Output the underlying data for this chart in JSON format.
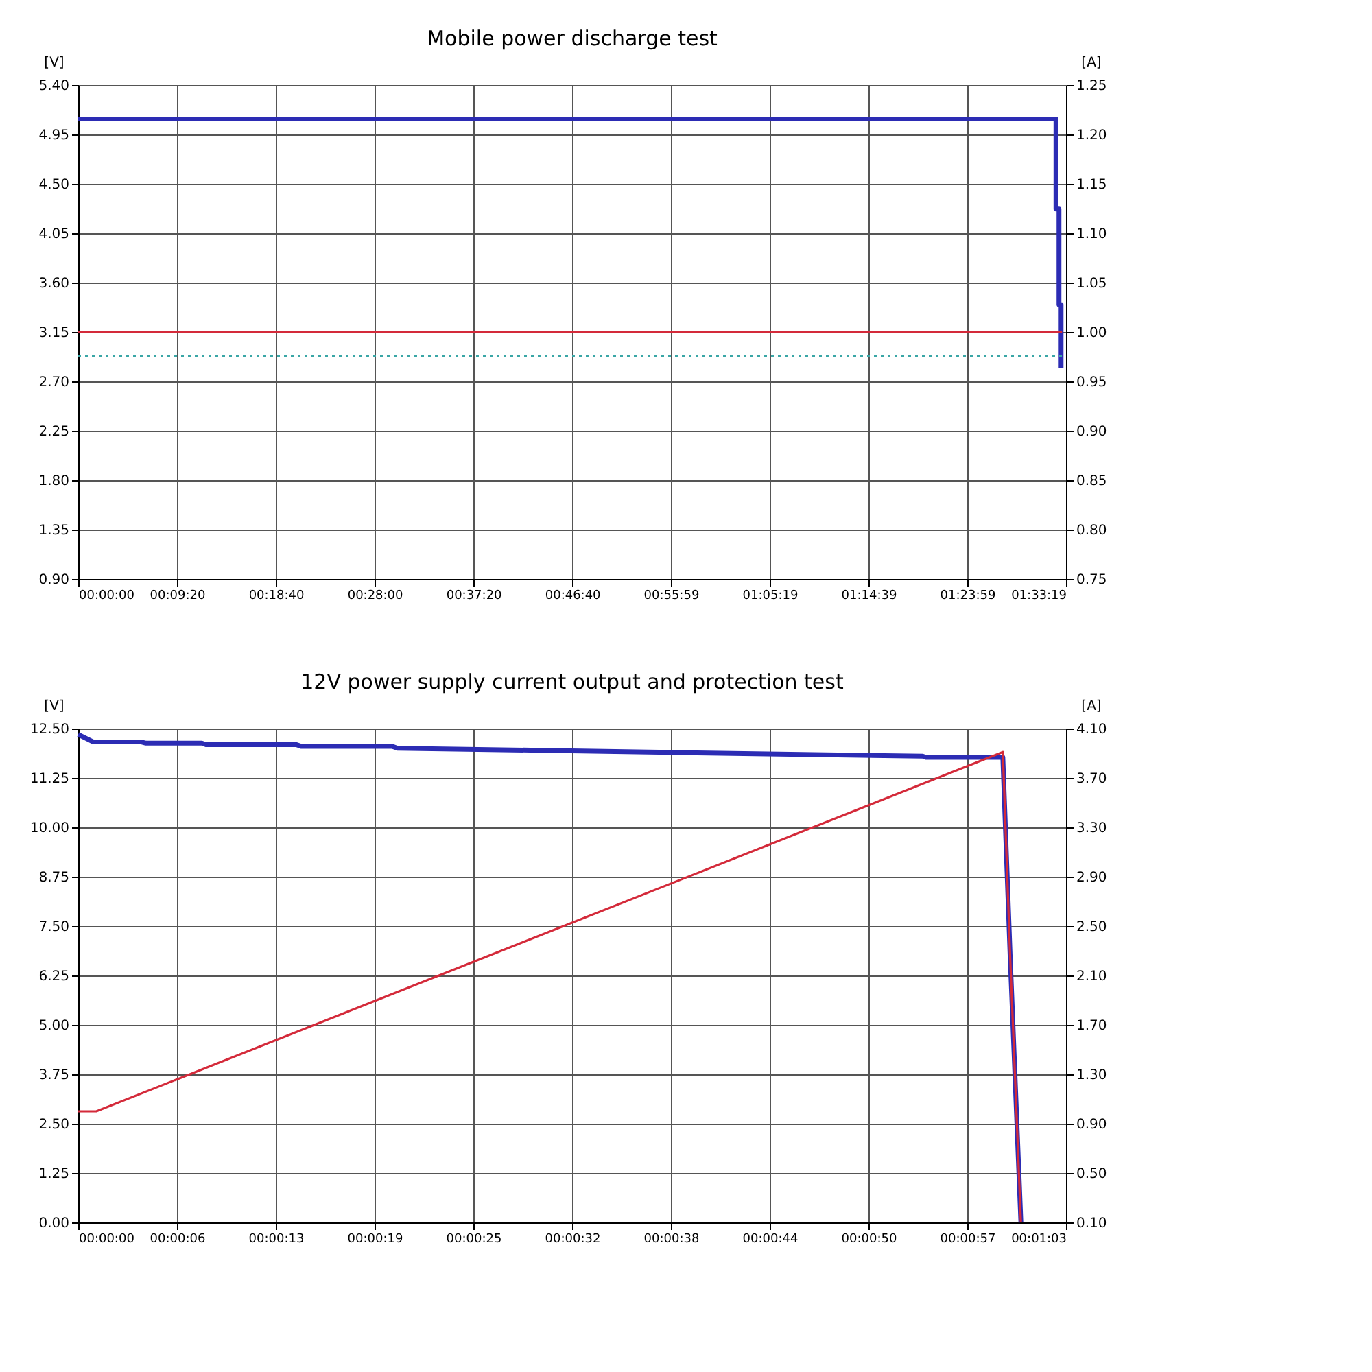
{
  "chart_data": [
    {
      "type": "line",
      "title": "Mobile power discharge test",
      "ylabel": "[V]",
      "y2label": "[A]",
      "grid": true,
      "line_style": "solid",
      "xlim": [
        0,
        1.55528
      ],
      "xticks": [
        {
          "value": 0,
          "label": "00:00:00"
        },
        {
          "value": 0.15556,
          "label": "00:09:20"
        },
        {
          "value": 0.31111,
          "label": "00:18:40"
        },
        {
          "value": 0.46667,
          "label": "00:28:00"
        },
        {
          "value": 0.62222,
          "label": "00:37:20"
        },
        {
          "value": 0.77778,
          "label": "00:46:40"
        },
        {
          "value": 0.93306,
          "label": "00:55:59"
        },
        {
          "value": 1.08861,
          "label": "01:05:19"
        },
        {
          "value": 1.24417,
          "label": "01:14:39"
        },
        {
          "value": 1.39972,
          "label": "01:23:59"
        },
        {
          "value": 1.55528,
          "label": "01:33:19"
        }
      ],
      "ylim": [
        0.9,
        5.4
      ],
      "yticks": [
        {
          "value": 0.9,
          "label": "0.90"
        },
        {
          "value": 1.35,
          "label": "1.35"
        },
        {
          "value": 1.8,
          "label": "1.80"
        },
        {
          "value": 2.25,
          "label": "2.25"
        },
        {
          "value": 2.7,
          "label": "2.70"
        },
        {
          "value": 3.15,
          "label": "3.15"
        },
        {
          "value": 3.6,
          "label": "3.60"
        },
        {
          "value": 4.05,
          "label": "4.05"
        },
        {
          "value": 4.5,
          "label": "4.50"
        },
        {
          "value": 4.95,
          "label": "4.95"
        },
        {
          "value": 5.4,
          "label": "5.40"
        }
      ],
      "y2lim": [
        0.75,
        1.25
      ],
      "y2ticks": [
        {
          "value": 0.75,
          "label": "0.75"
        },
        {
          "value": 0.8,
          "label": "0.80"
        },
        {
          "value": 0.85,
          "label": "0.85"
        },
        {
          "value": 0.9,
          "label": "0.90"
        },
        {
          "value": 0.95,
          "label": "0.95"
        },
        {
          "value": 1.0,
          "label": "1.00"
        },
        {
          "value": 1.05,
          "label": "1.05"
        },
        {
          "value": 1.1,
          "label": "1.10"
        },
        {
          "value": 1.15,
          "label": "1.15"
        },
        {
          "value": 1.2,
          "label": "1.20"
        },
        {
          "value": 1.25,
          "label": "1.25"
        }
      ],
      "ref_lines": [
        {
          "axis": "y",
          "value": 2.93,
          "color": "#3aa6a6",
          "line_style": "dotted"
        }
      ],
      "series": [
        {
          "color": "#2c2cb4",
          "x": [
            0,
            1.5394,
            1.5394,
            1.5442,
            1.5442,
            1.5475,
            1.5475
          ],
          "values": [
            5.09,
            5.09,
            4.27,
            4.27,
            3.4,
            3.4,
            2.82
          ]
        },
        {
          "color": "#d42a3a",
          "axis": "y2",
          "x": [
            0,
            1.549
          ],
          "values": [
            1.0,
            1.0
          ]
        }
      ]
    },
    {
      "type": "line",
      "title": "12V power supply current output and protection test",
      "ylabel": "[V]",
      "y2label": "[A]",
      "grid": true,
      "line_style": "solid",
      "xlim": [
        0,
        0.0175
      ],
      "xticks": [
        {
          "value": 0,
          "label": "00:00:00"
        },
        {
          "value": 0.00175,
          "label": "00:00:06"
        },
        {
          "value": 0.0035,
          "label": "00:00:13"
        },
        {
          "value": 0.00525,
          "label": "00:00:19"
        },
        {
          "value": 0.007,
          "label": "00:00:25"
        },
        {
          "value": 0.00875,
          "label": "00:00:32"
        },
        {
          "value": 0.0105,
          "label": "00:00:38"
        },
        {
          "value": 0.01225,
          "label": "00:00:44"
        },
        {
          "value": 0.014,
          "label": "00:00:50"
        },
        {
          "value": 0.01575,
          "label": "00:00:57"
        },
        {
          "value": 0.0175,
          "label": "00:01:03"
        }
      ],
      "ylim": [
        0,
        12.5
      ],
      "yticks": [
        {
          "value": 0,
          "label": "0.00"
        },
        {
          "value": 1.25,
          "label": "1.25"
        },
        {
          "value": 2.5,
          "label": "2.50"
        },
        {
          "value": 3.75,
          "label": "3.75"
        },
        {
          "value": 5,
          "label": "5.00"
        },
        {
          "value": 6.25,
          "label": "6.25"
        },
        {
          "value": 7.5,
          "label": "7.50"
        },
        {
          "value": 8.75,
          "label": "8.75"
        },
        {
          "value": 10,
          "label": "10.00"
        },
        {
          "value": 11.25,
          "label": "11.25"
        },
        {
          "value": 12.5,
          "label": "12.50"
        }
      ],
      "y2lim": [
        0.1,
        4.1
      ],
      "y2ticks": [
        {
          "value": 0.1,
          "label": "0.10"
        },
        {
          "value": 0.5,
          "label": "0.50"
        },
        {
          "value": 0.9,
          "label": "0.90"
        },
        {
          "value": 1.3,
          "label": "1.30"
        },
        {
          "value": 1.7,
          "label": "1.70"
        },
        {
          "value": 2.1,
          "label": "2.10"
        },
        {
          "value": 2.5,
          "label": "2.50"
        },
        {
          "value": 2.9,
          "label": "2.90"
        },
        {
          "value": 3.3,
          "label": "3.30"
        },
        {
          "value": 3.7,
          "label": "3.70"
        },
        {
          "value": 4.1,
          "label": "4.10"
        }
      ],
      "series": [
        {
          "color": "#2c2cb4",
          "x": [
            0,
            0.00027,
            0.00112,
            0.0012,
            0.00219,
            0.00227,
            0.00387,
            0.00395,
            0.00556,
            0.00566,
            0.00815,
            0.01029,
            0.01496,
            0.01502,
            0.01638,
            0.01651,
            0.0167
          ],
          "values": [
            12.35,
            12.16,
            12.16,
            12.13,
            12.13,
            12.09,
            12.09,
            12.05,
            12.05,
            12.0,
            11.95,
            11.9,
            11.8,
            11.77,
            11.77,
            6.74,
            0.0
          ]
        },
        {
          "color": "#d42a3a",
          "axis": "y2",
          "x": [
            0,
            0.00032,
            0.01638,
            0.01651,
            0.0167
          ],
          "values": [
            1.0,
            1.0,
            3.91,
            2.25,
            0.1
          ]
        }
      ]
    }
  ]
}
